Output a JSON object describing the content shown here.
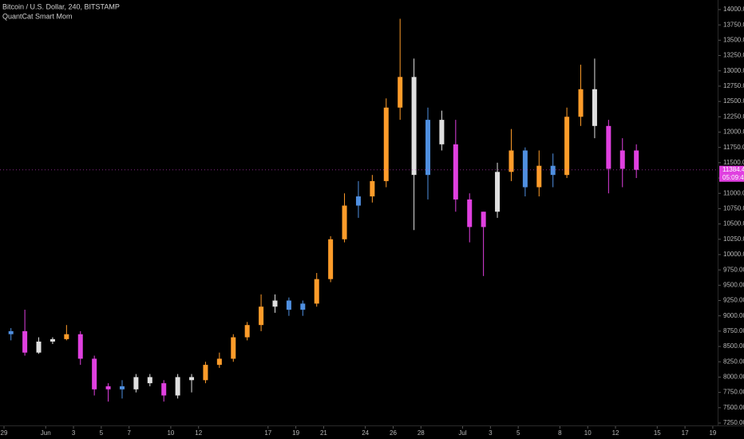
{
  "chart_data": {
    "type": "candlestick",
    "title": "Bitcoin / U.S. Dollar, 240, BITSTAMP",
    "subtitle": "QuantCat Smart Mom",
    "categories": [
      "29",
      null,
      null,
      "Jun",
      null,
      "3",
      null,
      "5",
      null,
      "7",
      null,
      null,
      "10",
      null,
      "12",
      null,
      null,
      null,
      null,
      "17",
      null,
      "19",
      null,
      "21",
      null,
      null,
      "24",
      null,
      "26",
      null,
      "28",
      null,
      null,
      "Jul",
      null,
      "3",
      null,
      "5",
      null,
      null,
      "8",
      null,
      "10",
      null,
      "12",
      null,
      null,
      "15",
      null,
      "17",
      null,
      "19"
    ],
    "open": [
      8700,
      8750,
      8400,
      8580,
      8620,
      8700,
      8300,
      7800,
      7850,
      7800,
      8000,
      7900,
      7700,
      8000,
      7950,
      8200,
      8300,
      8650,
      8850,
      9150,
      9250,
      9100,
      9200,
      9600,
      10250,
      10800,
      10950,
      11200,
      12400,
      12900,
      11300,
      12200,
      11800,
      10900,
      10450,
      10700,
      11350,
      11700,
      11100,
      11450,
      11300,
      12250,
      12700,
      12100,
      11400,
      11700,
      null,
      null,
      null,
      null,
      null,
      null
    ],
    "high": [
      8800,
      9100,
      8650,
      8650,
      8850,
      8750,
      8350,
      7900,
      7950,
      8050,
      8050,
      7950,
      8050,
      8050,
      8250,
      8400,
      8700,
      8900,
      9350,
      9350,
      9300,
      9250,
      9700,
      10300,
      11000,
      11200,
      11300,
      12550,
      13850,
      13200,
      12400,
      12350,
      12200,
      11000,
      10700,
      11500,
      12050,
      11750,
      11700,
      11650,
      12400,
      13100,
      13200,
      12200,
      11900,
      11800,
      null,
      null,
      null,
      null,
      null,
      null
    ],
    "low": [
      8600,
      8350,
      8380,
      8540,
      8600,
      8200,
      7700,
      7600,
      7650,
      7750,
      7850,
      7600,
      7650,
      7750,
      7900,
      8150,
      8250,
      8600,
      8750,
      9050,
      9000,
      9000,
      9150,
      9550,
      10200,
      10600,
      10850,
      11100,
      12200,
      10400,
      10900,
      11700,
      10700,
      10200,
      9650,
      10600,
      11200,
      10950,
      10950,
      11100,
      11250,
      12100,
      11900,
      11000,
      11100,
      11250,
      null,
      null,
      null,
      null,
      null,
      null
    ],
    "close": [
      8750,
      8400,
      8580,
      8620,
      8700,
      8300,
      7800,
      7850,
      7800,
      8000,
      7900,
      7700,
      8000,
      7950,
      8200,
      8300,
      8650,
      8850,
      9150,
      9250,
      9100,
      9200,
      9600,
      10250,
      10800,
      10950,
      11200,
      12400,
      12900,
      11300,
      12200,
      11800,
      10900,
      10450,
      10700,
      11350,
      11700,
      11100,
      11450,
      11300,
      12250,
      12700,
      12100,
      11400,
      11700,
      11384.47,
      null,
      null,
      null,
      null,
      null,
      null
    ],
    "colors": [
      "#4f8fe0",
      "#e040e0",
      "#e0e0e0",
      "#e0e0e0",
      "#ff9c2a",
      "#e040e0",
      "#e040e0",
      "#e040e0",
      "#4f8fe0",
      "#e0e0e0",
      "#e0e0e0",
      "#e040e0",
      "#e0e0e0",
      "#e0e0e0",
      "#ff9c2a",
      "#ff9c2a",
      "#ff9c2a",
      "#ff9c2a",
      "#ff9c2a",
      "#e0e0e0",
      "#4f8fe0",
      "#4f8fe0",
      "#ff9c2a",
      "#ff9c2a",
      "#ff9c2a",
      "#4f8fe0",
      "#ff9c2a",
      "#ff9c2a",
      "#ff9c2a",
      "#e0e0e0",
      "#4f8fe0",
      "#e0e0e0",
      "#e040e0",
      "#e040e0",
      "#e040e0",
      "#e0e0e0",
      "#ff9c2a",
      "#4f8fe0",
      "#ff9c2a",
      "#4f8fe0",
      "#ff9c2a",
      "#ff9c2a",
      "#e0e0e0",
      "#e040e0",
      "#e040e0",
      "#e040e0",
      null,
      null,
      null,
      null,
      null,
      null
    ],
    "ylim": [
      7250,
      14000
    ],
    "yticks": [
      {
        "value": 7250,
        "label": "7250.00"
      },
      {
        "value": 7500,
        "label": "7500.00"
      },
      {
        "value": 7750,
        "label": "7750.00"
      },
      {
        "value": 8000,
        "label": "8000.00"
      },
      {
        "value": 8250,
        "label": "8250.00"
      },
      {
        "value": 8500,
        "label": "8500.00"
      },
      {
        "value": 8750,
        "label": "8750.00"
      },
      {
        "value": 9000,
        "label": "9000.00"
      },
      {
        "value": 9250,
        "label": "9250.00"
      },
      {
        "value": 9500,
        "label": "9500.00"
      },
      {
        "value": 9750,
        "label": "9750.00"
      },
      {
        "value": 10000,
        "label": "10000.00"
      },
      {
        "value": 10250,
        "label": "10250.00"
      },
      {
        "value": 10500,
        "label": "10500.00"
      },
      {
        "value": 10750,
        "label": "10750.00"
      },
      {
        "value": 11000,
        "label": "11000.00"
      },
      {
        "value": 11250,
        "label": "11250.00"
      },
      {
        "value": 11500,
        "label": "11500.00"
      },
      {
        "value": 11750,
        "label": "11750.00"
      },
      {
        "value": 12000,
        "label": "12000.00"
      },
      {
        "value": 12250,
        "label": "12250.00"
      },
      {
        "value": 12500,
        "label": "12500.00"
      },
      {
        "value": 12750,
        "label": "12750.00"
      },
      {
        "value": 13000,
        "label": "13000.00"
      },
      {
        "value": 13250,
        "label": "13250.00"
      },
      {
        "value": 13500,
        "label": "13500.00"
      },
      {
        "value": 13750,
        "label": "13750.00"
      },
      {
        "value": 14000,
        "label": "14000.00"
      }
    ],
    "last_price": 11384.47,
    "countdown": "05:09:47",
    "last_price_color": "#e040e0",
    "grid": false
  }
}
